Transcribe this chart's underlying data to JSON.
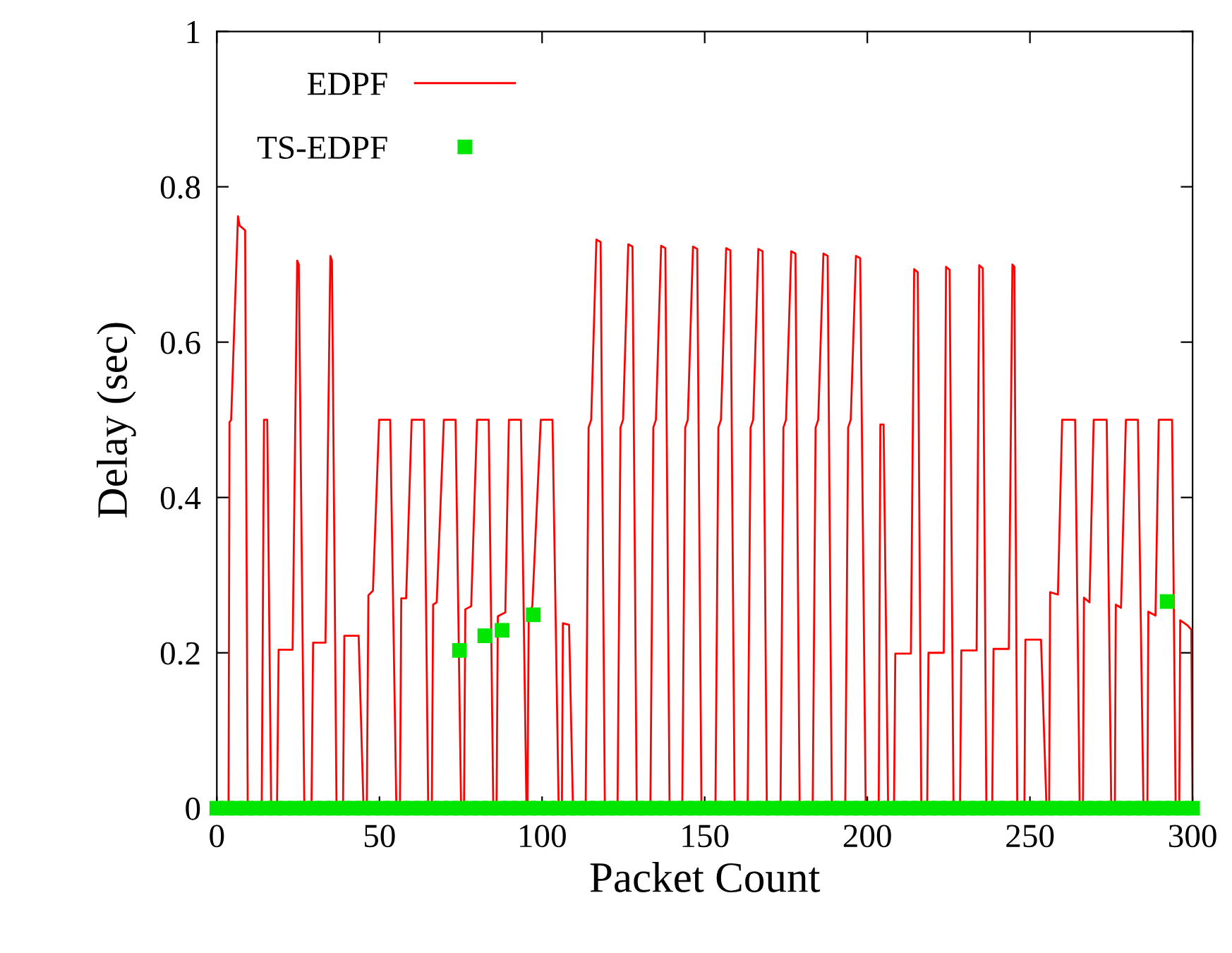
{
  "chart_data": {
    "type": "line",
    "xlabel": "Packet Count",
    "ylabel": "Delay (sec)",
    "xlim": [
      0,
      300
    ],
    "xticks": [
      0,
      50,
      100,
      150,
      200,
      250,
      300
    ],
    "ylim": [
      0,
      1
    ],
    "yticks": [
      0,
      0.2,
      0.4,
      0.6,
      0.8,
      1
    ],
    "grid": false,
    "legend": "top left",
    "series": [
      {
        "name": "EDPF",
        "color": "#ff0000",
        "marker": "none",
        "line_style": "solid",
        "x": [
          0,
          3.6,
          3.9,
          4.4,
          6.5,
          7.0,
          8.7,
          9.5,
          13.8,
          14.5,
          15.5,
          16.7,
          18.5,
          19.0,
          23.3,
          24.7,
          25.2,
          26.9,
          29.1,
          29.6,
          33.4,
          34.9,
          35.4,
          36.8,
          38.8,
          39.2,
          43.6,
          45.1,
          46.1,
          46.6,
          48.0,
          49.9,
          53.3,
          55.2,
          56.3,
          56.7,
          58.2,
          59.9,
          63.7,
          65.0,
          66.1,
          66.5,
          67.6,
          69.8,
          73.4,
          75.1,
          76.0,
          76.4,
          78.2,
          80.0,
          83.6,
          85.0,
          86.0,
          86.4,
          88.7,
          89.8,
          93.5,
          95.2,
          95.5,
          95.9,
          97.0,
          99.6,
          103.2,
          105.1,
          106.1,
          106.4,
          108.3,
          109.5,
          113.4,
          114.3,
          115.1,
          116.7,
          118.0,
          119.3,
          123.2,
          124.1,
          124.9,
          126.5,
          127.8,
          129.1,
          133.3,
          134.2,
          135.0,
          136.6,
          137.9,
          139.2,
          143.1,
          144.0,
          144.8,
          146.4,
          147.7,
          149.0,
          153.3,
          154.2,
          155.0,
          156.6,
          157.9,
          159.2,
          163.2,
          164.1,
          164.9,
          166.5,
          167.8,
          169.1,
          173.3,
          174.2,
          175.0,
          176.6,
          177.9,
          179.2,
          183.2,
          184.1,
          184.9,
          186.5,
          187.8,
          189.1,
          193.2,
          194.1,
          194.9,
          196.5,
          197.8,
          199.5,
          203.5,
          204.0,
          205.0,
          206.4,
          208.2,
          208.6,
          213.4,
          214.4,
          215.5,
          216.6,
          218.4,
          218.8,
          223.5,
          224.2,
          225.3,
          226.5,
          228.5,
          228.9,
          233.6,
          234.4,
          235.5,
          236.6,
          238.4,
          238.8,
          243.5,
          244.6,
          245.2,
          246.1,
          248.3,
          248.6,
          253.4,
          255.1,
          255.9,
          256.2,
          258.6,
          259.9,
          263.9,
          265.3,
          266.3,
          266.6,
          268.3,
          269.6,
          273.6,
          275.0,
          276.1,
          276.4,
          278.0,
          279.5,
          283.2,
          284.9,
          286.1,
          286.4,
          288.6,
          289.6,
          293.7,
          294.8,
          295.9,
          296.2,
          298.5,
          299.6,
          300
        ],
        "values": [
          0,
          0,
          0.497,
          0.5,
          0.762,
          0.75,
          0.744,
          0,
          0,
          0.5,
          0.5,
          0,
          0,
          0.204,
          0.204,
          0.705,
          0.7,
          0,
          0,
          0.213,
          0.213,
          0.711,
          0.705,
          0,
          0,
          0.222,
          0.222,
          0,
          0,
          0.274,
          0.28,
          0.5,
          0.5,
          0,
          0,
          0.27,
          0.27,
          0.5,
          0.5,
          0,
          0,
          0.262,
          0.265,
          0.5,
          0.5,
          0,
          0,
          0.256,
          0.26,
          0.5,
          0.5,
          0,
          0,
          0.247,
          0.252,
          0.5,
          0.5,
          0,
          0,
          0.25,
          0.26,
          0.5,
          0.5,
          0,
          0,
          0.238,
          0.236,
          0,
          0,
          0.49,
          0.5,
          0.732,
          0.729,
          0,
          0,
          0.49,
          0.5,
          0.726,
          0.723,
          0,
          0,
          0.49,
          0.5,
          0.724,
          0.721,
          0,
          0,
          0.49,
          0.5,
          0.723,
          0.72,
          0,
          0,
          0.49,
          0.5,
          0.721,
          0.718,
          0,
          0,
          0.49,
          0.5,
          0.72,
          0.717,
          0,
          0,
          0.49,
          0.5,
          0.717,
          0.714,
          0,
          0,
          0.49,
          0.5,
          0.714,
          0.711,
          0,
          0,
          0.49,
          0.5,
          0.711,
          0.708,
          0,
          0,
          0.494,
          0.494,
          0,
          0,
          0.199,
          0.199,
          0.694,
          0.69,
          0,
          0,
          0.2,
          0.2,
          0.697,
          0.693,
          0,
          0,
          0.203,
          0.203,
          0.699,
          0.695,
          0,
          0,
          0.205,
          0.205,
          0.7,
          0.697,
          0,
          0,
          0.217,
          0.217,
          0,
          0,
          0.278,
          0.275,
          0.5,
          0.5,
          0,
          0,
          0.271,
          0.265,
          0.5,
          0.5,
          0,
          0,
          0.262,
          0.258,
          0.5,
          0.5,
          0,
          0,
          0.253,
          0.248,
          0.5,
          0.5,
          0,
          0,
          0.242,
          0.235,
          0.23,
          0
        ]
      },
      {
        "name": "TS-EDPF",
        "type": "scatter",
        "color": "#00e600",
        "marker": "square",
        "x": [
          0,
          3,
          6,
          9,
          12,
          15,
          18,
          21,
          24,
          27,
          30,
          33,
          36,
          39,
          42,
          45,
          48,
          51,
          54,
          57,
          60,
          63,
          66,
          69,
          72,
          74.6,
          75,
          78,
          81,
          82.4,
          84,
          87,
          87.7,
          90,
          93,
          96,
          97.3,
          99,
          102,
          105,
          108,
          111,
          114,
          117,
          120,
          123,
          126,
          129,
          132,
          135,
          138,
          141,
          144,
          147,
          150,
          153,
          156,
          159,
          162,
          165,
          168,
          171,
          174,
          177,
          180,
          183,
          186,
          189,
          192,
          195,
          198,
          201,
          204,
          207,
          210,
          213,
          216,
          219,
          222,
          225,
          228,
          231,
          234,
          237,
          240,
          243,
          246,
          249,
          252,
          255,
          258,
          261,
          264,
          267,
          270,
          273,
          276,
          279,
          282,
          285,
          288,
          291,
          292.2,
          294,
          297,
          300
        ],
        "values": [
          0,
          0,
          0,
          0,
          0,
          0,
          0,
          0,
          0,
          0,
          0,
          0,
          0,
          0,
          0,
          0,
          0,
          0,
          0,
          0,
          0,
          0,
          0,
          0,
          0,
          0.203,
          0,
          0,
          0,
          0.222,
          0,
          0,
          0.229,
          0,
          0,
          0,
          0.249,
          0,
          0,
          0,
          0,
          0,
          0,
          0,
          0,
          0,
          0,
          0,
          0,
          0,
          0,
          0,
          0,
          0,
          0,
          0,
          0,
          0,
          0,
          0,
          0,
          0,
          0,
          0,
          0,
          0,
          0,
          0,
          0,
          0,
          0,
          0,
          0,
          0,
          0,
          0,
          0,
          0,
          0,
          0,
          0,
          0,
          0,
          0,
          0,
          0,
          0,
          0,
          0,
          0,
          0,
          0,
          0,
          0,
          0,
          0,
          0,
          0,
          0,
          0,
          0,
          0,
          0.266,
          0,
          0,
          0
        ]
      }
    ]
  }
}
